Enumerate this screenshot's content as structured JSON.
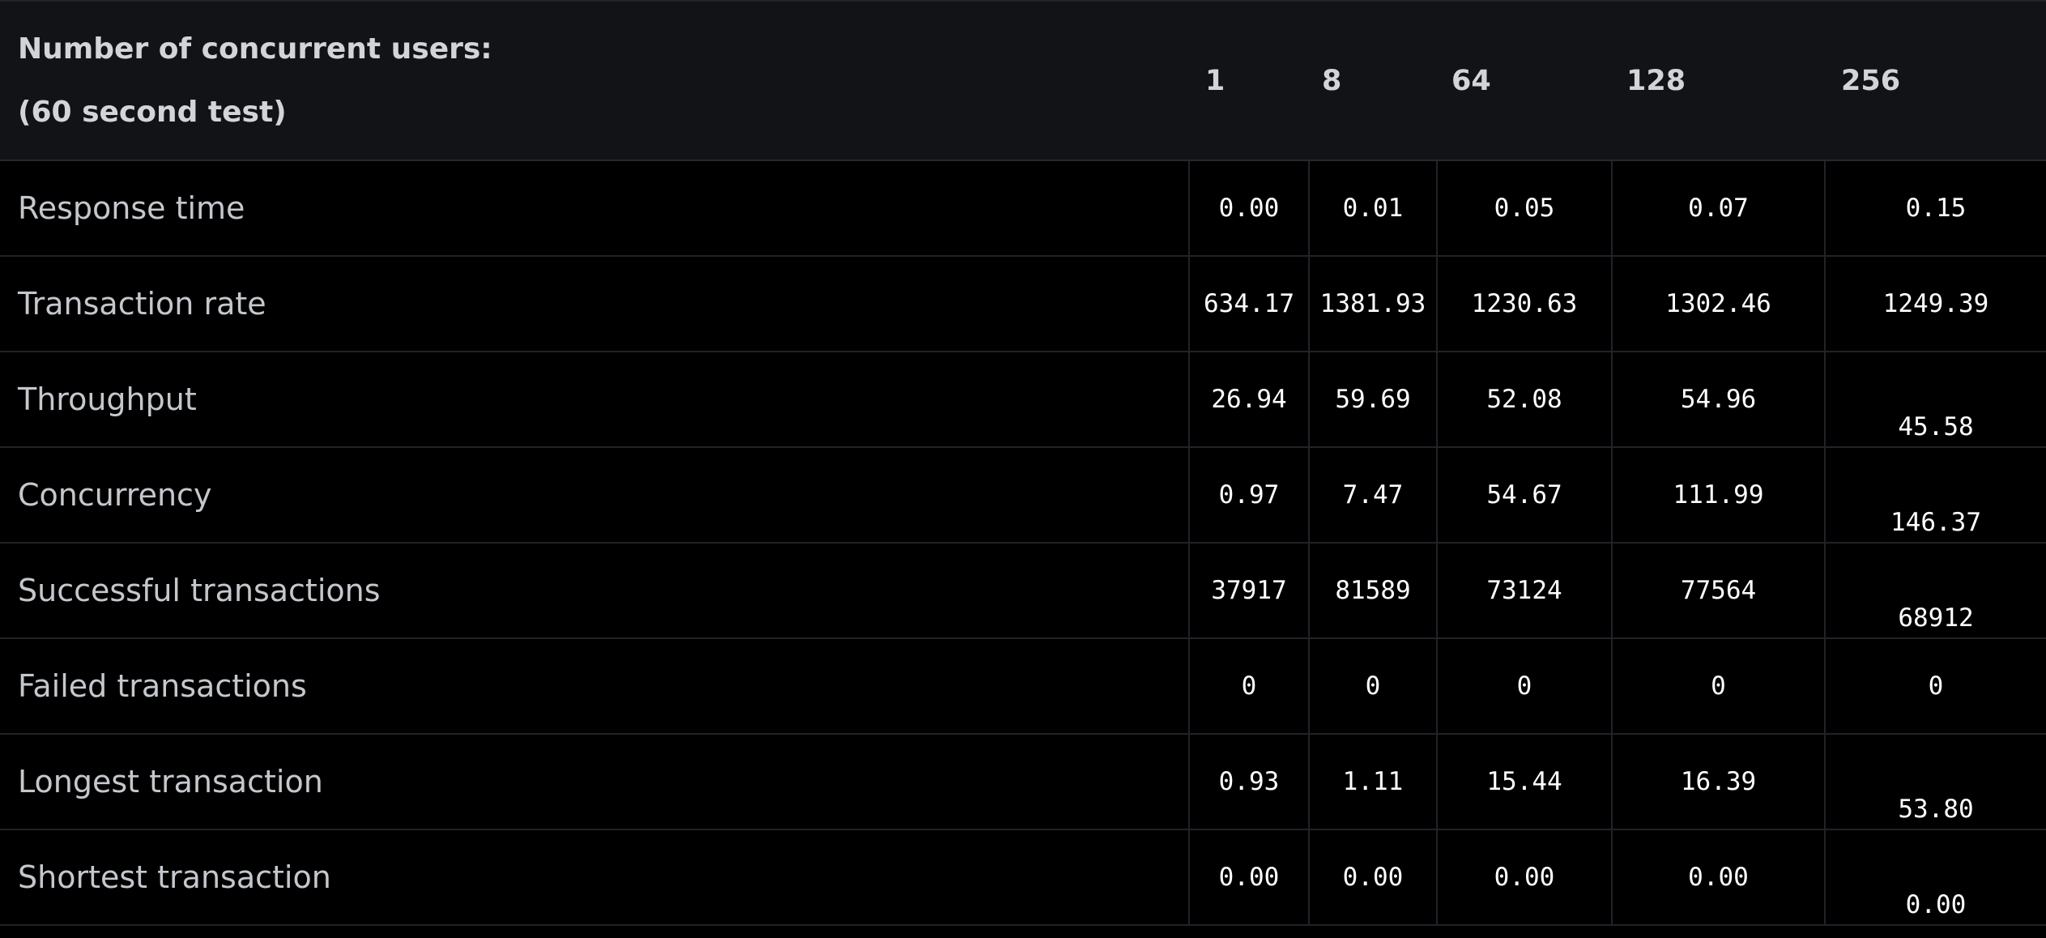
{
  "header": {
    "label_line1": "Number of concurrent users:",
    "label_line2": "(60 second test)",
    "users": [
      "1",
      "8",
      "64",
      "128",
      "256"
    ]
  },
  "rows": [
    {
      "label": "Response time",
      "values": [
        "0.00",
        "0.01",
        "0.05",
        "0.07",
        "0.15"
      ]
    },
    {
      "label": "Transaction rate",
      "values": [
        "634.17",
        "1381.93",
        "1230.63",
        "1302.46",
        "1249.39"
      ]
    },
    {
      "label": "Throughput",
      "values": [
        "26.94",
        "59.69",
        "52.08",
        "54.96",
        "45.58"
      ]
    },
    {
      "label": "Concurrency",
      "values": [
        "0.97",
        "7.47",
        "54.67",
        "111.99",
        "146.37"
      ]
    },
    {
      "label": "Successful transactions",
      "values": [
        "37917",
        "81589",
        "73124",
        "77564",
        "68912"
      ]
    },
    {
      "label": "Failed transactions",
      "values": [
        "0",
        "0",
        "0",
        "0",
        "0"
      ]
    },
    {
      "label": "Longest transaction",
      "values": [
        "0.93",
        "1.11",
        "15.44",
        "16.39",
        "53.80"
      ]
    },
    {
      "label": "Shortest transaction",
      "values": [
        "0.00",
        "0.00",
        "0.00",
        "0.00",
        "0.00"
      ]
    }
  ]
}
